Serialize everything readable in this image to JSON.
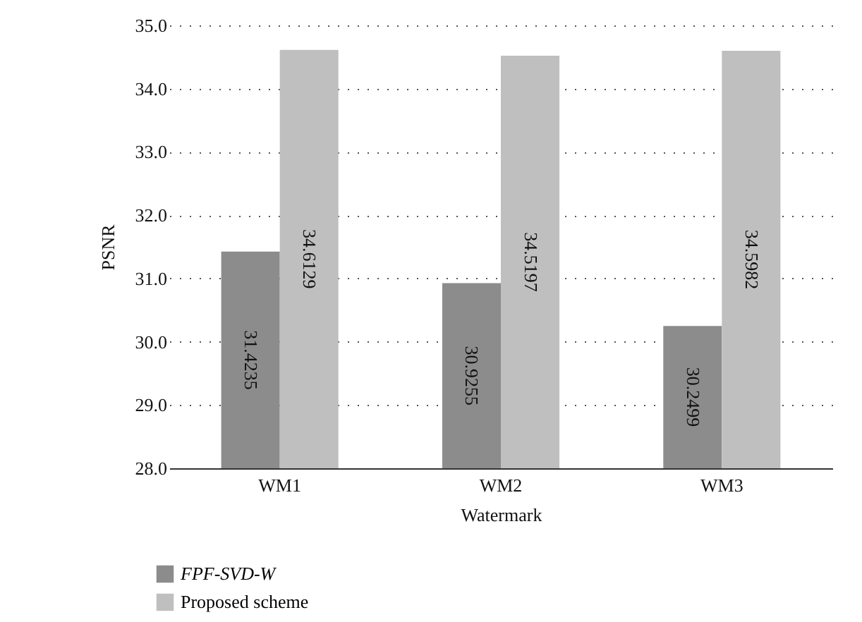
{
  "chart_data": {
    "type": "bar",
    "xlabel": "Watermark",
    "ylabel": "PSNR",
    "categories": [
      "WM1",
      "WM2",
      "WM3"
    ],
    "series": [
      {
        "name": "FPF-SVD-W",
        "color": "#8c8c8c",
        "values": [
          31.4235,
          30.9255,
          30.2499
        ]
      },
      {
        "name": "Proposed scheme",
        "color": "#bfbfbf",
        "values": [
          34.6129,
          34.5197,
          34.5982
        ]
      }
    ],
    "ylim": [
      28,
      35
    ],
    "yticks": [
      {
        "value": 28,
        "label": "28.0"
      },
      {
        "value": 29,
        "label": "29.0"
      },
      {
        "value": 30,
        "label": "30.0"
      },
      {
        "value": 31,
        "label": "31.0"
      },
      {
        "value": 32,
        "label": "32.0"
      },
      {
        "value": 33,
        "label": "33.0"
      },
      {
        "value": 34,
        "label": "34.0"
      },
      {
        "value": 35,
        "label": "35.0"
      }
    ],
    "grid": "y",
    "legend": "bottom left",
    "data_labels": true
  }
}
